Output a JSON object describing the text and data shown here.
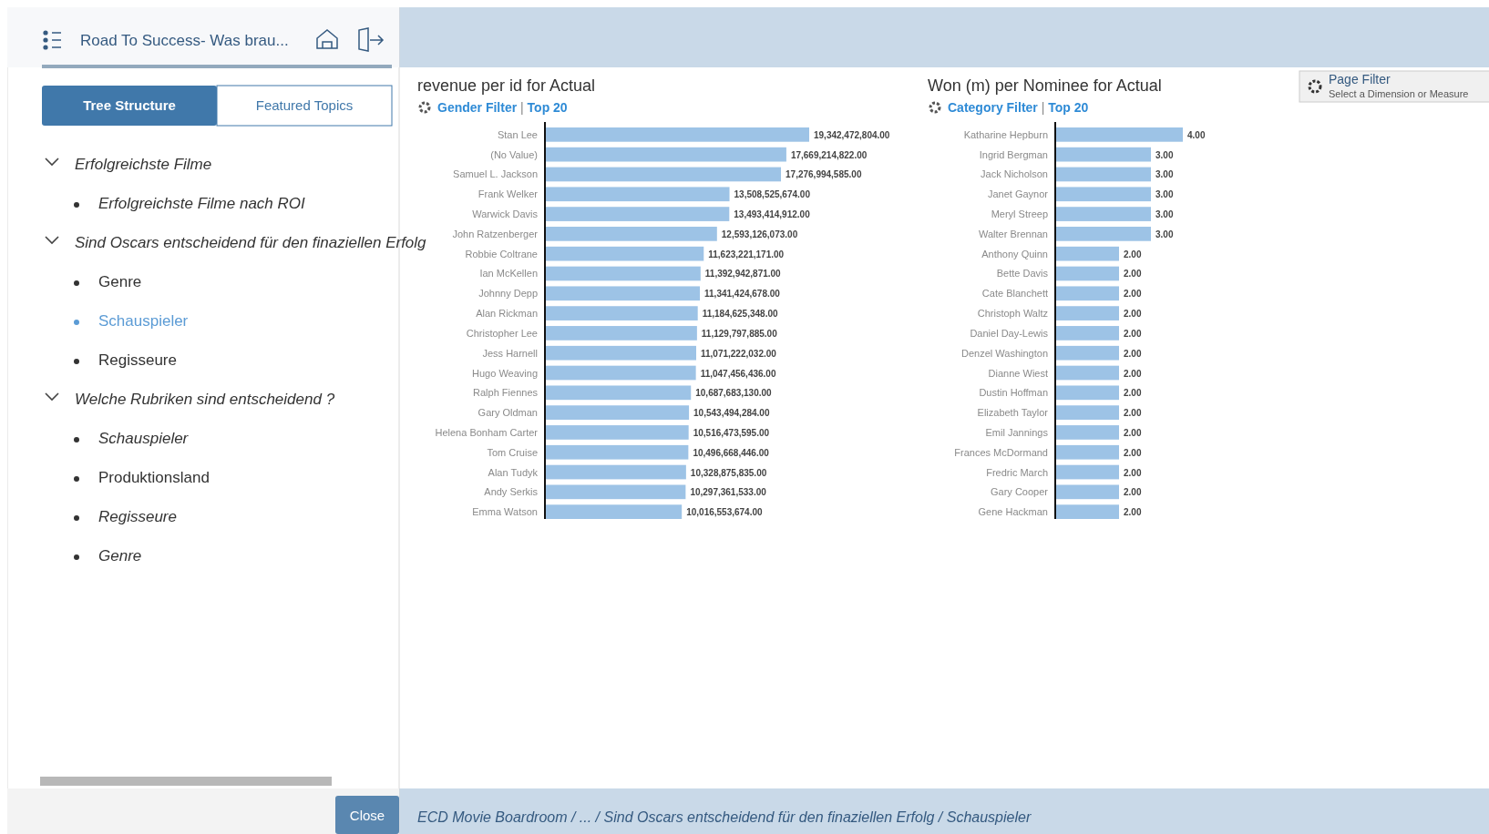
{
  "chart_data": [
    {
      "type": "other",
      "annotations": [
        "Road To Success- Was brau...",
        "Tree Structure",
        "Featured Topics",
        "Erfolgreichste Filme",
        "Erfolgreichste Filme nach ROI",
        "Sind Oscars entscheidend für den finaziellen Erfolg",
        "Genre",
        "Schauspieler",
        "Regisseure",
        "Welche Rubriken sind entscheidend ?",
        "Schauspieler",
        "Produktionsland",
        "Regisseure",
        "Genre",
        "Close",
        "Page Filter",
        "Select a Dimension or Measure",
        "ECD Movie Boardroom / ... / Sind Oscars entscheidend für den finaziellen Erfolg / Schauspieler"
      ]
    },
    {
      "type": "bar",
      "orientation": "horizontal",
      "title": "revenue per id for Actual",
      "subtitle": "Gender Filter | Top 20",
      "color": "#9dc3e6",
      "categories": [
        "Stan Lee",
        "(No Value)",
        "Samuel L. Jackson",
        "Frank Welker",
        "Warwick Davis",
        "John Ratzenberger",
        "Robbie Coltrane",
        "Ian McKellen",
        "Johnny Depp",
        "Alan Rickman",
        "Christopher Lee",
        "Jess Harnell",
        "Hugo Weaving",
        "Ralph Fiennes",
        "Gary Oldman",
        "Helena Bonham Carter",
        "Tom Cruise",
        "Alan Tudyk",
        "Andy Serkis",
        "Emma Watson"
      ],
      "values": [
        19342472804,
        17669214822,
        17276994585,
        13508525674,
        13493414912,
        12593126073,
        11623221171,
        11392942871,
        11341424678,
        11184625348,
        11129797885,
        11071222032,
        11047456436,
        10687683130,
        10543494284,
        10516473595,
        10496668446,
        10328875835,
        10297361533,
        10016553674
      ],
      "value_labels": [
        "19,342,472,804.00",
        "17,669,214,822.00",
        "17,276,994,585.00",
        "13,508,525,674.00",
        "13,493,414,912.00",
        "12,593,126,073.00",
        "11,623,221,171.00",
        "11,392,942,871.00",
        "11,341,424,678.00",
        "11,184,625,348.00",
        "11,129,797,885.00",
        "11,071,222,032.00",
        "11,047,456,436.00",
        "10,687,683,130.00",
        "10,543,494,284.00",
        "10,516,473,595.00",
        "10,496,668,446.00",
        "10,328,875,835.00",
        "10,297,361,533.00",
        "10,016,553,674.00"
      ]
    },
    {
      "type": "bar",
      "orientation": "horizontal",
      "title": "Won (m) per Nominee for Actual",
      "subtitle": "Category Filter | Top 20",
      "color": "#9dc3e6",
      "categories": [
        "Katharine Hepburn",
        "Ingrid Bergman",
        "Jack Nicholson",
        "Janet Gaynor",
        "Meryl Streep",
        "Walter Brennan",
        "Anthony Quinn",
        "Bette Davis",
        "Cate Blanchett",
        "Christoph Waltz",
        "Daniel Day-Lewis",
        "Denzel Washington",
        "Dianne Wiest",
        "Dustin Hoffman",
        "Elizabeth Taylor",
        "Emil Jannings",
        "Frances McDormand",
        "Fredric March",
        "Gary Cooper",
        "Gene Hackman"
      ],
      "values": [
        4,
        3,
        3,
        3,
        3,
        3,
        2,
        2,
        2,
        2,
        2,
        2,
        2,
        2,
        2,
        2,
        2,
        2,
        2,
        2
      ],
      "value_labels": [
        "4.00",
        "3.00",
        "3.00",
        "3.00",
        "3.00",
        "3.00",
        "2.00",
        "2.00",
        "2.00",
        "2.00",
        "2.00",
        "2.00",
        "2.00",
        "2.00",
        "2.00",
        "2.00",
        "2.00",
        "2.00",
        "2.00",
        "2.00"
      ]
    }
  ]
}
